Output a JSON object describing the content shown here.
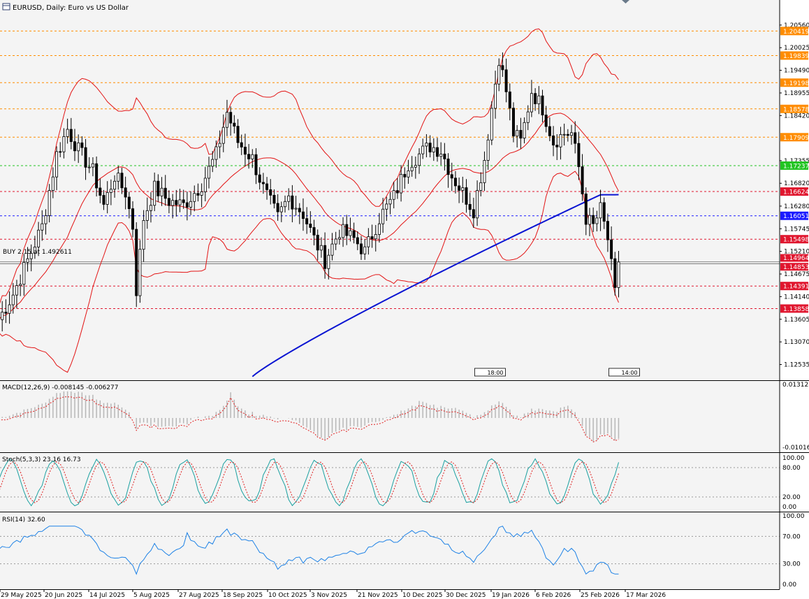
{
  "header": {
    "title": "EURUSD, Daily:  Euro vs US Dollar",
    "icon": "window-icon"
  },
  "colors": {
    "background": "#ffffff",
    "panel": "#f4f4f4",
    "bull_candle": "#ffffff",
    "bear_candle": "#000000",
    "bollinger": "#e31414",
    "ma200": "#0a14d2",
    "level_orange": "#ff8c00",
    "level_green": "#22c422",
    "level_blue": "#1a1aff",
    "level_red": "#e0162e",
    "macd_hist": "#b4b4b4",
    "macd_signal": "#e02020",
    "stoch_main": "#1aa0a0",
    "stoch_signal": "#e02020",
    "rsi": "#1e82e6"
  },
  "main_price_axis": [
    "1.20560",
    "1.20025",
    "1.19490",
    "1.18955",
    "1.18420",
    "1.17355",
    "1.16820",
    "1.16280",
    "1.15745",
    "1.15210",
    "1.14675",
    "1.14140",
    "1.13605",
    "1.13070",
    "1.12535"
  ],
  "price_range": [
    1.1223,
    1.2102
  ],
  "levels": [
    {
      "label": "1.20419",
      "price": 1.20419,
      "color": "orange",
      "style": "dash"
    },
    {
      "label": "1.19839",
      "price": 1.19839,
      "color": "orange",
      "style": "dash"
    },
    {
      "label": "1.19198",
      "price": 1.19198,
      "color": "orange",
      "style": "dash"
    },
    {
      "label": "1.18578",
      "price": 1.18578,
      "color": "orange",
      "style": "dash"
    },
    {
      "label": "1.17909",
      "price": 1.17909,
      "color": "orange",
      "style": "dash"
    },
    {
      "label": "1.17237",
      "price": 1.17237,
      "color": "green",
      "style": "dash"
    },
    {
      "label": "1.16624",
      "price": 1.16624,
      "color": "red",
      "style": "dash"
    },
    {
      "label": "1.16051",
      "price": 1.16051,
      "color": "blue",
      "style": "dash"
    },
    {
      "label": "1.15498",
      "price": 1.15498,
      "color": "red",
      "style": "dash"
    },
    {
      "label": "1.14391",
      "price": 1.14391,
      "color": "red",
      "style": "dash"
    },
    {
      "label": "1.13858",
      "price": 1.13858,
      "color": "red",
      "style": "dash"
    }
  ],
  "current_price": {
    "label": "1.14964",
    "price": 1.14964
  },
  "order_line": {
    "text": "BUY 2.15 at 1.492611",
    "price": 1.1492,
    "tag": "1.14853"
  },
  "session_markers": [
    {
      "text": "18:00",
      "date_index": 134
    },
    {
      "text": "14:00",
      "date_index": 171
    }
  ],
  "x_axis_labels": [
    "29 May 2025",
    "20 Jun 2025",
    "14 Jul 2025",
    "5 Aug 2025",
    "27 Aug 2025",
    "18 Sep 2025",
    "10 Oct 2025",
    "3 Nov 2025",
    "21 Nov 2025",
    "10 Dec 2025",
    "30 Dec 2025",
    "19 Jan 2026",
    "6 Feb 2026",
    "25 Feb 2026",
    "17 Mar 2026"
  ],
  "macd": {
    "label": "MACD(12,26,9) -0.008145 -0.006277",
    "axis_top": "0.013123",
    "axis_bottom": "-0.010164"
  },
  "stoch": {
    "label": "Stoch(5,3,3) 23.16 16.73",
    "axis": [
      "100.00",
      "80.00",
      "20.00",
      "0.00"
    ]
  },
  "rsi": {
    "label": "RSI(14) 32.60",
    "axis": [
      "100.00",
      "70.00",
      "30.00",
      "0.00"
    ]
  },
  "chart_data": {
    "type": "candlestick",
    "symbol": "EURUSD",
    "timeframe": "Daily",
    "title": "EURUSD, Daily:  Euro vs US Dollar",
    "close_anchors": [
      [
        0,
        1.136
      ],
      [
        4,
        1.142
      ],
      [
        8,
        1.15
      ],
      [
        12,
        1.158
      ],
      [
        16,
        1.175
      ],
      [
        19,
        1.181
      ],
      [
        22,
        1.176
      ],
      [
        26,
        1.171
      ],
      [
        29,
        1.163
      ],
      [
        32,
        1.17
      ],
      [
        35,
        1.166
      ],
      [
        37,
        1.158
      ],
      [
        38,
        1.143
      ],
      [
        40,
        1.16
      ],
      [
        43,
        1.167
      ],
      [
        47,
        1.164
      ],
      [
        51,
        1.163
      ],
      [
        56,
        1.168
      ],
      [
        60,
        1.175
      ],
      [
        63,
        1.185
      ],
      [
        66,
        1.178
      ],
      [
        70,
        1.174
      ],
      [
        73,
        1.167
      ],
      [
        77,
        1.16
      ],
      [
        80,
        1.165
      ],
      [
        84,
        1.161
      ],
      [
        87,
        1.155
      ],
      [
        90,
        1.15
      ],
      [
        94,
        1.157
      ],
      [
        98,
        1.155
      ],
      [
        101,
        1.152
      ],
      [
        105,
        1.16
      ],
      [
        109,
        1.165
      ],
      [
        113,
        1.173
      ],
      [
        116,
        1.175
      ],
      [
        119,
        1.177
      ],
      [
        122,
        1.176
      ],
      [
        125,
        1.17
      ],
      [
        128,
        1.166
      ],
      [
        131,
        1.162
      ],
      [
        134,
        1.174
      ],
      [
        136,
        1.186
      ],
      [
        138,
        1.198
      ],
      [
        140,
        1.19
      ],
      [
        142,
        1.18
      ],
      [
        144,
        1.178
      ],
      [
        147,
        1.19
      ],
      [
        150,
        1.186
      ],
      [
        153,
        1.178
      ],
      [
        156,
        1.18
      ],
      [
        158,
        1.18
      ],
      [
        160,
        1.172
      ],
      [
        162,
        1.16
      ],
      [
        164,
        1.158
      ],
      [
        166,
        1.162
      ],
      [
        168,
        1.155
      ],
      [
        170,
        1.142
      ],
      [
        171,
        1.1496
      ]
    ]
  }
}
